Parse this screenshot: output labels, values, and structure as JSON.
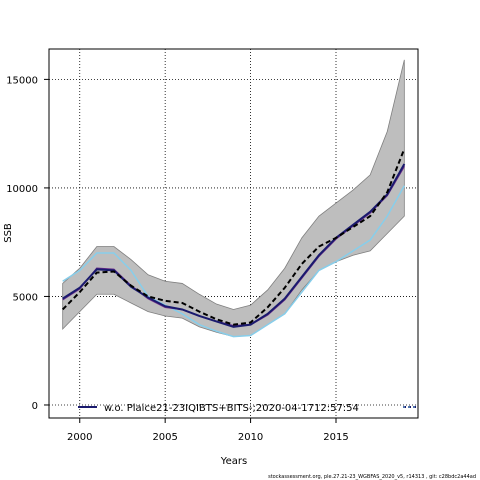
{
  "chart_data": {
    "type": "line",
    "xlabel": "Years",
    "ylabel": "SSB",
    "xlim": [
      1998.2,
      2019.8
    ],
    "ylim": [
      -600,
      16400
    ],
    "x_ticks": [
      2000,
      2005,
      2010,
      2015
    ],
    "y_ticks": [
      0,
      5000,
      10000,
      15000
    ],
    "grid": "dotted",
    "legend": {
      "position": "bottom-left",
      "label": "w.o. Plaice21-23IQIBTS+BITS-;2020-04-1712:57:54"
    },
    "x": [
      1999,
      2000,
      2001,
      2002,
      2003,
      2004,
      2005,
      2006,
      2007,
      2008,
      2009,
      2010,
      2011,
      2012,
      2013,
      2014,
      2015,
      2016,
      2017,
      2018,
      2019
    ],
    "band": {
      "lower": [
        3500,
        4300,
        5100,
        5100,
        4700,
        4300,
        4100,
        4000,
        3600,
        3350,
        3150,
        3200,
        3700,
        4200,
        5300,
        6200,
        6600,
        6900,
        7100,
        7900,
        8700
      ],
      "upper": [
        5600,
        6300,
        7300,
        7300,
        6700,
        6000,
        5700,
        5600,
        5100,
        4650,
        4400,
        4600,
        5300,
        6300,
        7700,
        8700,
        9300,
        9900,
        10600,
        12600,
        15900
      ]
    },
    "series": [
      {
        "style": "dashed-black",
        "values": [
          4400,
          5200,
          6100,
          6150,
          5500,
          5000,
          4800,
          4700,
          4300,
          3950,
          3700,
          3800,
          4500,
          5400,
          6500,
          7300,
          7700,
          8200,
          8700,
          9800,
          11800
        ]
      },
      {
        "style": "solid-navy",
        "values": [
          4900,
          5400,
          6250,
          6200,
          5450,
          4950,
          4550,
          4400,
          4100,
          3850,
          3600,
          3700,
          4200,
          4900,
          5900,
          6900,
          7700,
          8300,
          8900,
          9700,
          11100
        ]
      },
      {
        "style": "solid-purple",
        "values": [
          4850,
          5350,
          6300,
          6250,
          5500,
          4900,
          4500,
          4400,
          4100,
          3850,
          3650,
          3700,
          4150,
          4850,
          5850,
          6850,
          7650,
          8250,
          8850,
          9650,
          11000
        ]
      },
      {
        "style": "solid-lightblue",
        "values": [
          5700,
          6200,
          7000,
          7000,
          6200,
          5000,
          4600,
          4200,
          3700,
          3400,
          3150,
          3200,
          3700,
          4200,
          5200,
          6200,
          6600,
          7100,
          7600,
          8700,
          10100
        ]
      }
    ],
    "colors": {
      "band": "#bebebe",
      "navy": "#1a1a6e",
      "purple": "#6a2a8a",
      "lightblue": "#87ceeb",
      "black": "#000000"
    }
  },
  "footer": "stockassessment.org, ple.27.21-23_WGBFAS_2020_v5, r14313 , git: c28bdc2a44ad"
}
